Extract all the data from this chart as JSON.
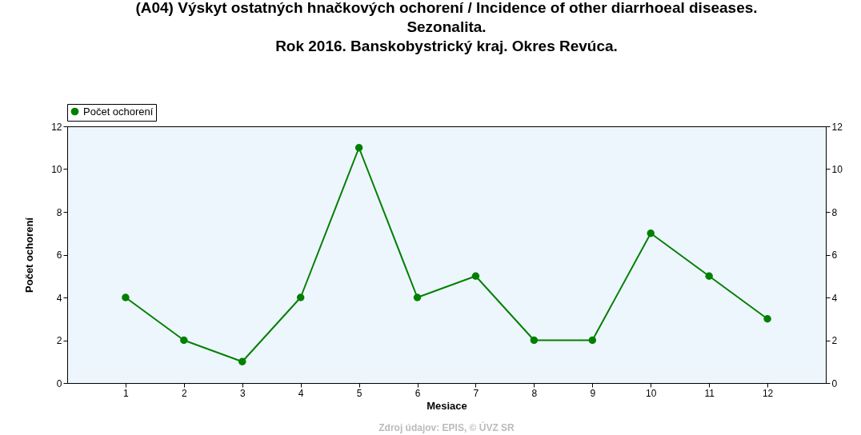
{
  "chart_data": {
    "type": "line",
    "title": "(A04) Výskyt ostatných hnačkových ochorení / Incidence of other diarrhoeal diseases.\nSezonalita.\nRok 2016. Banskobystrický kraj. Okres Revúca.",
    "xlabel": "Mesiace",
    "ylabel": "Počet ochorení",
    "x": [
      1,
      2,
      3,
      4,
      5,
      6,
      7,
      8,
      9,
      10,
      11,
      12
    ],
    "series": [
      {
        "name": "Počet ochorení",
        "color": "#008000",
        "values": [
          4,
          2,
          1,
          4,
          11,
          4,
          5,
          2,
          2,
          7,
          5,
          3
        ]
      }
    ],
    "xlim": [
      0,
      13
    ],
    "xticks": [
      1,
      2,
      3,
      4,
      5,
      6,
      7,
      8,
      9,
      10,
      11,
      12
    ],
    "ylim": [
      0,
      12
    ],
    "yticks": [
      0,
      2,
      4,
      6,
      8,
      10,
      12
    ],
    "y2lim": [
      0,
      12
    ],
    "y2ticks": [
      0,
      2,
      4,
      6,
      8,
      10,
      12
    ],
    "grid": false,
    "legend": "top left",
    "marker": "circle",
    "line_style": "solid",
    "annotations": [
      "Zdroj údajov: EPIS, © ÚVZ SR"
    ]
  }
}
